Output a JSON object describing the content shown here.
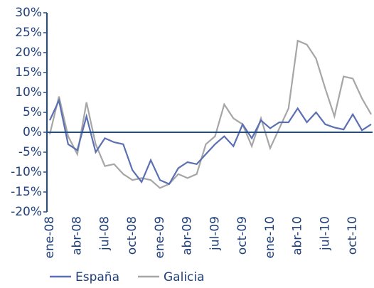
{
  "chart_data": {
    "type": "line",
    "categories": [
      "ene-08",
      null,
      null,
      "abr-08",
      null,
      null,
      "jul-08",
      null,
      null,
      "oct-08",
      null,
      null,
      "ene-09",
      null,
      null,
      "abr-09",
      null,
      null,
      "jul-09",
      null,
      null,
      "oct-09",
      null,
      null,
      "ene-10",
      null,
      null,
      "abr-10",
      null,
      null,
      "jul-10",
      null,
      null,
      "oct-10",
      null,
      null
    ],
    "series": [
      {
        "name": "España",
        "color": "#5b6fb3",
        "values": [
          3,
          8,
          -3,
          -4.5,
          4,
          -5,
          -1.5,
          -2.5,
          -3,
          -9.5,
          -12.5,
          -7,
          -12,
          -13,
          -9,
          -7.5,
          -8,
          -5.5,
          -3,
          -1,
          -3.5,
          2,
          -1.5,
          3,
          1,
          2.5,
          2.5,
          6,
          2.5,
          5,
          2,
          1.2,
          0.7,
          4.5,
          0.5,
          2
        ]
      },
      {
        "name": "Galicia",
        "color": "#a6a6a6",
        "values": [
          -0.5,
          9,
          -1,
          -5.5,
          7.5,
          -3,
          -8.5,
          -8,
          -10.5,
          -12,
          -11.5,
          -12,
          -14,
          -13,
          -10.5,
          -11.5,
          -10.5,
          -3,
          -1,
          7,
          3.5,
          2,
          -3.5,
          3.5,
          -4,
          1,
          6,
          23,
          22,
          18.5,
          11,
          4,
          14,
          13.5,
          8.5,
          4.5
        ]
      }
    ],
    "ylim": [
      -20,
      30
    ],
    "yticks": [
      {
        "value": -20,
        "label": "-20%"
      },
      {
        "value": -15,
        "label": "-15%"
      },
      {
        "value": -10,
        "label": "-10%"
      },
      {
        "value": -5,
        "label": "-5%"
      },
      {
        "value": 0,
        "label": "0%"
      },
      {
        "value": 5,
        "label": "5%"
      },
      {
        "value": 10,
        "label": "10%"
      },
      {
        "value": 15,
        "label": "15%"
      },
      {
        "value": 20,
        "label": "20%"
      },
      {
        "value": 25,
        "label": "25%"
      },
      {
        "value": 30,
        "label": "30%"
      }
    ],
    "legend": "bottom"
  }
}
